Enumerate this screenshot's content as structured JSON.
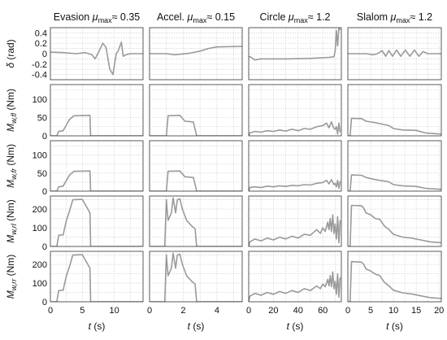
{
  "chart_data": {
    "type": "line",
    "series_color": "#9a9a9a",
    "grid": true,
    "columns": [
      {
        "title_prefix": "Evasion ",
        "mu_sym": "μ",
        "mu_sub": "max",
        "title_suffix": "≈ 0.35",
        "xlim": [
          0,
          14.5
        ],
        "xticks": [
          0,
          5,
          10
        ],
        "xtick_labels": [
          "0",
          "5",
          "10"
        ]
      },
      {
        "title_prefix": "Accel. ",
        "mu_sym": "μ",
        "mu_sub": "max",
        "title_suffix": "≈ 0.15",
        "xlim": [
          0,
          5.5
        ],
        "xticks": [
          0,
          2,
          4
        ],
        "xtick_labels": [
          "0",
          "2",
          "4"
        ]
      },
      {
        "title_prefix": "Circle ",
        "mu_sym": "μ",
        "mu_sub": "max",
        "title_suffix": "≈ 1.2",
        "xlim": [
          0,
          75
        ],
        "xticks": [
          0,
          20,
          40,
          60
        ],
        "xtick_labels": [
          "0",
          "20",
          "40",
          "60"
        ]
      },
      {
        "title_prefix": "Slalom ",
        "mu_sym": "μ",
        "mu_sub": "max",
        "title_suffix": "≈ 1.2",
        "xlim": [
          0,
          20.5
        ],
        "xticks": [
          0,
          5,
          10,
          15,
          20
        ],
        "xtick_labels": [
          "0",
          "5",
          "10",
          "15",
          "20"
        ]
      }
    ],
    "rows": [
      {
        "ylabel_main": "δ",
        "ylabel_sub": "",
        "ylabel_unit": " (rad)",
        "ylim": [
          -0.5,
          0.5
        ],
        "yticks": [
          -0.4,
          -0.2,
          0,
          0.2,
          0.4
        ],
        "ytick_labels": [
          "-0.4",
          "-0.2",
          "0",
          "0.2",
          "0.4"
        ]
      },
      {
        "ylabel_main": "M",
        "ylabel_sub": "w,fl",
        "ylabel_unit": " (Nm)",
        "ylim": [
          0,
          140
        ],
        "yticks": [
          0,
          50,
          100
        ],
        "ytick_labels": [
          "0",
          "50",
          "100"
        ]
      },
      {
        "ylabel_main": "M",
        "ylabel_sub": "w,fr",
        "ylabel_unit": " (Nm)",
        "ylim": [
          0,
          140
        ],
        "yticks": [
          0,
          50,
          100
        ],
        "ytick_labels": [
          "0",
          "50",
          "100"
        ]
      },
      {
        "ylabel_main": "M",
        "ylabel_sub": "w,rl",
        "ylabel_unit": " (Nm)",
        "ylim": [
          0,
          270
        ],
        "yticks": [
          0,
          100,
          200
        ],
        "ytick_labels": [
          "0",
          "100",
          "200"
        ]
      },
      {
        "ylabel_main": "M",
        "ylabel_sub": "w,rr",
        "ylabel_unit": " (Nm)",
        "ylim": [
          0,
          270
        ],
        "yticks": [
          0,
          100,
          200
        ],
        "ytick_labels": [
          "0",
          "100",
          "200"
        ]
      }
    ],
    "xlabel_var": "t",
    "xlabel_unit": " (s)",
    "curves": {
      "0_0": [
        [
          0,
          0.03
        ],
        [
          2,
          0.02
        ],
        [
          4,
          0.0
        ],
        [
          5.5,
          0.02
        ],
        [
          6.5,
          -0.02
        ],
        [
          7,
          -0.1
        ],
        [
          7.5,
          0.02
        ],
        [
          8.2,
          0.2
        ],
        [
          8.7,
          0.12
        ],
        [
          9.3,
          -0.3
        ],
        [
          9.8,
          -0.4
        ],
        [
          10.3,
          0.0
        ],
        [
          10.6,
          0.05
        ],
        [
          11.1,
          0.22
        ],
        [
          11.4,
          -0.05
        ],
        [
          11.8,
          -0.02
        ],
        [
          12.5,
          0.0
        ],
        [
          14.5,
          0.0
        ]
      ],
      "0_1": [
        [
          0,
          0.0
        ],
        [
          1,
          0.0
        ],
        [
          1.5,
          -0.02
        ],
        [
          2.4,
          0.01
        ],
        [
          3,
          0.05
        ],
        [
          3.5,
          0.1
        ],
        [
          4,
          0.13
        ],
        [
          5.5,
          0.14
        ]
      ],
      "0_2": [
        [
          0,
          -0.05
        ],
        [
          2,
          -0.07
        ],
        [
          5,
          -0.12
        ],
        [
          10,
          -0.1
        ],
        [
          30,
          -0.1
        ],
        [
          50,
          -0.09
        ],
        [
          65,
          -0.07
        ],
        [
          69,
          -0.06
        ],
        [
          70,
          0.05
        ],
        [
          71,
          0.45
        ],
        [
          72,
          0.15
        ],
        [
          73,
          0.5
        ],
        [
          74,
          0.45
        ]
      ],
      "0_3": [
        [
          0,
          0.0
        ],
        [
          4,
          0.0
        ],
        [
          5.5,
          -0.02
        ],
        [
          6.5,
          0.0
        ],
        [
          7.5,
          0.06
        ],
        [
          8.3,
          -0.05
        ],
        [
          9,
          0.06
        ],
        [
          9.8,
          -0.05
        ],
        [
          10.7,
          0.07
        ],
        [
          11.6,
          -0.05
        ],
        [
          12.6,
          0.07
        ],
        [
          13.6,
          -0.05
        ],
        [
          14.6,
          0.07
        ],
        [
          15.6,
          -0.05
        ],
        [
          16.5,
          0.04
        ],
        [
          17.5,
          0.0
        ],
        [
          20.5,
          0.0
        ]
      ],
      "1_0": [
        [
          0,
          0
        ],
        [
          1,
          0
        ],
        [
          1.3,
          12
        ],
        [
          2,
          14
        ],
        [
          2.5,
          30
        ],
        [
          3,
          45
        ],
        [
          3.7,
          55
        ],
        [
          6.2,
          56
        ],
        [
          6.3,
          0
        ],
        [
          14.5,
          0
        ]
      ],
      "1_1": [
        [
          0,
          0
        ],
        [
          1,
          0
        ],
        [
          1.1,
          55
        ],
        [
          1.8,
          56
        ],
        [
          2.1,
          40
        ],
        [
          2.6,
          38
        ],
        [
          2.8,
          0
        ],
        [
          5.5,
          0
        ]
      ],
      "1_2": [
        [
          0,
          0
        ],
        [
          1,
          8
        ],
        [
          5,
          12
        ],
        [
          10,
          10
        ],
        [
          15,
          14
        ],
        [
          20,
          12
        ],
        [
          25,
          16
        ],
        [
          30,
          13
        ],
        [
          35,
          18
        ],
        [
          40,
          14
        ],
        [
          45,
          20
        ],
        [
          50,
          18
        ],
        [
          55,
          25
        ],
        [
          60,
          28
        ],
        [
          63,
          35
        ],
        [
          65,
          22
        ],
        [
          67,
          38
        ],
        [
          69,
          20
        ],
        [
          70,
          18
        ],
        [
          71,
          25
        ],
        [
          72,
          5
        ],
        [
          73,
          35
        ],
        [
          74,
          10
        ]
      ],
      "1_3": [
        [
          0,
          0
        ],
        [
          0.5,
          0
        ],
        [
          0.8,
          48
        ],
        [
          3,
          47
        ],
        [
          4,
          40
        ],
        [
          6,
          36
        ],
        [
          9,
          28
        ],
        [
          10,
          20
        ],
        [
          12,
          16
        ],
        [
          15,
          15
        ],
        [
          17,
          8
        ],
        [
          19,
          6
        ],
        [
          20.5,
          5
        ]
      ],
      "2_0": [
        [
          0,
          0
        ],
        [
          1,
          0
        ],
        [
          1.3,
          12
        ],
        [
          2,
          14
        ],
        [
          2.5,
          30
        ],
        [
          3,
          45
        ],
        [
          3.7,
          55
        ],
        [
          6.2,
          56
        ],
        [
          6.3,
          0
        ],
        [
          14.5,
          0
        ]
      ],
      "2_1": [
        [
          0,
          0
        ],
        [
          1,
          0
        ],
        [
          1.1,
          55
        ],
        [
          1.8,
          56
        ],
        [
          2.1,
          40
        ],
        [
          2.6,
          38
        ],
        [
          2.8,
          0
        ],
        [
          5.5,
          0
        ]
      ],
      "2_2": [
        [
          0,
          0
        ],
        [
          1,
          10
        ],
        [
          5,
          12
        ],
        [
          10,
          10
        ],
        [
          15,
          14
        ],
        [
          20,
          12
        ],
        [
          25,
          15
        ],
        [
          30,
          13
        ],
        [
          35,
          16
        ],
        [
          40,
          15
        ],
        [
          45,
          18
        ],
        [
          50,
          17
        ],
        [
          55,
          22
        ],
        [
          60,
          24
        ],
        [
          63,
          30
        ],
        [
          65,
          20
        ],
        [
          67,
          32
        ],
        [
          69,
          18
        ],
        [
          70,
          22
        ],
        [
          71,
          12
        ],
        [
          72,
          30
        ],
        [
          73,
          8
        ],
        [
          74,
          28
        ]
      ],
      "2_3": [
        [
          0,
          0
        ],
        [
          0.5,
          0
        ],
        [
          0.8,
          45
        ],
        [
          3,
          44
        ],
        [
          4,
          38
        ],
        [
          6,
          32
        ],
        [
          9,
          26
        ],
        [
          10,
          18
        ],
        [
          12,
          15
        ],
        [
          15,
          13
        ],
        [
          17,
          8
        ],
        [
          19,
          6
        ],
        [
          20.5,
          5
        ]
      ],
      "3_0": [
        [
          0,
          0
        ],
        [
          1,
          0
        ],
        [
          1.3,
          60
        ],
        [
          2,
          62
        ],
        [
          2.5,
          140
        ],
        [
          3,
          190
        ],
        [
          3.5,
          250
        ],
        [
          5,
          252
        ],
        [
          6.2,
          180
        ],
        [
          6.3,
          0
        ],
        [
          14.5,
          0
        ]
      ],
      "3_1": [
        [
          0,
          0
        ],
        [
          0.9,
          0
        ],
        [
          1.0,
          250
        ],
        [
          1.1,
          140
        ],
        [
          1.3,
          180
        ],
        [
          1.4,
          260
        ],
        [
          1.55,
          180
        ],
        [
          1.65,
          250
        ],
        [
          1.8,
          255
        ],
        [
          1.95,
          200
        ],
        [
          2.2,
          140
        ],
        [
          2.5,
          110
        ],
        [
          2.7,
          95
        ],
        [
          2.8,
          0
        ],
        [
          5.5,
          0
        ]
      ],
      "3_2": [
        [
          0,
          0
        ],
        [
          1,
          25
        ],
        [
          5,
          40
        ],
        [
          10,
          30
        ],
        [
          15,
          45
        ],
        [
          20,
          35
        ],
        [
          25,
          50
        ],
        [
          30,
          40
        ],
        [
          35,
          55
        ],
        [
          40,
          45
        ],
        [
          45,
          65
        ],
        [
          50,
          60
        ],
        [
          55,
          90
        ],
        [
          58,
          70
        ],
        [
          60,
          100
        ],
        [
          62,
          80
        ],
        [
          64,
          130
        ],
        [
          65,
          90
        ],
        [
          66,
          150
        ],
        [
          67,
          80
        ],
        [
          68,
          170
        ],
        [
          69,
          70
        ],
        [
          70,
          120
        ],
        [
          71,
          40
        ],
        [
          72,
          160
        ],
        [
          73,
          20
        ],
        [
          74,
          140
        ]
      ],
      "3_3": [
        [
          0,
          0
        ],
        [
          0.5,
          0
        ],
        [
          0.8,
          220
        ],
        [
          3,
          218
        ],
        [
          3.5,
          205
        ],
        [
          4,
          180
        ],
        [
          5,
          170
        ],
        [
          6,
          150
        ],
        [
          7,
          145
        ],
        [
          8,
          110
        ],
        [
          9,
          90
        ],
        [
          10,
          65
        ],
        [
          12,
          50
        ],
        [
          14,
          45
        ],
        [
          16,
          35
        ],
        [
          18,
          25
        ],
        [
          20.5,
          20
        ]
      ],
      "4_0": [
        [
          0,
          0
        ],
        [
          1,
          0
        ],
        [
          1.3,
          60
        ],
        [
          2,
          62
        ],
        [
          2.5,
          140
        ],
        [
          3,
          190
        ],
        [
          3.5,
          250
        ],
        [
          5,
          252
        ],
        [
          6.2,
          180
        ],
        [
          6.3,
          0
        ],
        [
          14.5,
          0
        ]
      ],
      "4_1": [
        [
          0,
          0
        ],
        [
          0.9,
          0
        ],
        [
          1.0,
          250
        ],
        [
          1.1,
          140
        ],
        [
          1.3,
          180
        ],
        [
          1.4,
          260
        ],
        [
          1.55,
          180
        ],
        [
          1.65,
          250
        ],
        [
          1.8,
          255
        ],
        [
          1.95,
          200
        ],
        [
          2.2,
          140
        ],
        [
          2.5,
          110
        ],
        [
          2.7,
          95
        ],
        [
          2.8,
          0
        ],
        [
          5.5,
          0
        ]
      ],
      "4_2": [
        [
          0,
          0
        ],
        [
          1,
          30
        ],
        [
          5,
          45
        ],
        [
          10,
          35
        ],
        [
          15,
          50
        ],
        [
          20,
          40
        ],
        [
          25,
          55
        ],
        [
          30,
          45
        ],
        [
          35,
          60
        ],
        [
          40,
          50
        ],
        [
          45,
          70
        ],
        [
          50,
          60
        ],
        [
          55,
          85
        ],
        [
          58,
          70
        ],
        [
          60,
          95
        ],
        [
          62,
          80
        ],
        [
          64,
          120
        ],
        [
          65,
          85
        ],
        [
          66,
          140
        ],
        [
          67,
          80
        ],
        [
          68,
          160
        ],
        [
          69,
          70
        ],
        [
          70,
          110
        ],
        [
          71,
          40
        ],
        [
          72,
          150
        ],
        [
          73,
          25
        ],
        [
          74,
          130
        ]
      ],
      "4_3": [
        [
          0,
          0
        ],
        [
          0.5,
          0
        ],
        [
          0.8,
          215
        ],
        [
          3,
          212
        ],
        [
          3.5,
          200
        ],
        [
          4,
          175
        ],
        [
          5,
          165
        ],
        [
          6,
          148
        ],
        [
          7,
          140
        ],
        [
          8,
          105
        ],
        [
          9,
          85
        ],
        [
          10,
          62
        ],
        [
          12,
          48
        ],
        [
          14,
          42
        ],
        [
          16,
          32
        ],
        [
          18,
          22
        ],
        [
          20.5,
          18
        ]
      ]
    }
  }
}
